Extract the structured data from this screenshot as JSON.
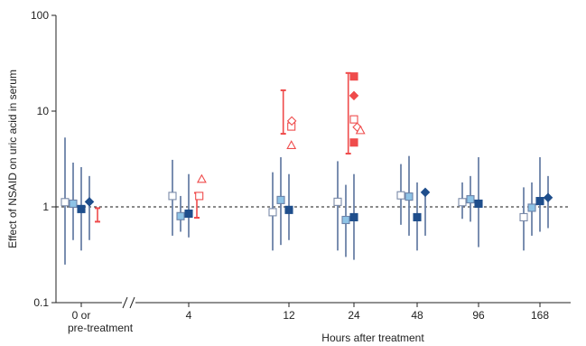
{
  "chart_data": {
    "type": "scatter",
    "scale_y": "log",
    "ylim": [
      0.1,
      100
    ],
    "ylabel": "Effect of NSAID on uric acid in serum",
    "xlabel": "Hours after treatment",
    "y_ticks": [
      "0.1",
      "1",
      "10",
      "100"
    ],
    "x_categories": [
      "0 or pre-treatment",
      "4",
      "12",
      "24",
      "48",
      "96",
      "168"
    ],
    "x_tick_lines": [
      [
        "0 or",
        "pre-treatment"
      ],
      [
        "4"
      ],
      [
        "12"
      ],
      [
        "24"
      ],
      [
        "48"
      ],
      [
        "96"
      ],
      [
        "168"
      ]
    ],
    "reference_line": 1,
    "axis_break_between": [
      "0 or pre-treatment",
      "4"
    ],
    "colors": {
      "light_open": "#ffffff",
      "light_blue": "#8ec3e6",
      "dark_blue": "#1f4e8c",
      "error_blue": "#6b82a8",
      "red": "#ef4b4b",
      "axis": "#222222"
    },
    "points": [
      {
        "category": "0 or pre-treatment",
        "offset": -2,
        "value": 1.12,
        "lower": 0.25,
        "upper": 5.3,
        "marker": "square-open",
        "color": "blue"
      },
      {
        "category": "0 or pre-treatment",
        "offset": -1,
        "value": 1.08,
        "lower": 0.45,
        "upper": 2.9,
        "marker": "square-light",
        "color": "blue"
      },
      {
        "category": "0 or pre-treatment",
        "offset": 0,
        "value": 0.95,
        "lower": 0.35,
        "upper": 2.6,
        "marker": "square-dark",
        "color": "blue"
      },
      {
        "category": "0 or pre-treatment",
        "offset": 1,
        "value": 1.13,
        "lower": 0.45,
        "upper": 2.1,
        "marker": "diamond-dark",
        "color": "blue"
      },
      {
        "category": "0 or pre-treatment",
        "offset": 2,
        "value": null,
        "lower": 0.7,
        "upper": 0.97,
        "marker": "none",
        "color": "red"
      },
      {
        "category": "4",
        "offset": -2,
        "value": 1.3,
        "lower": 0.5,
        "upper": 3.1,
        "marker": "square-open",
        "color": "blue"
      },
      {
        "category": "4",
        "offset": -1,
        "value": 0.8,
        "lower": 0.55,
        "upper": 1.3,
        "marker": "square-light",
        "color": "blue"
      },
      {
        "category": "4",
        "offset": 0,
        "value": 0.85,
        "lower": 0.48,
        "upper": 2.2,
        "marker": "square-dark",
        "color": "blue"
      },
      {
        "category": "4",
        "offset": 1,
        "value": null,
        "lower": 0.77,
        "upper": 1.4,
        "marker": "none",
        "color": "red"
      },
      {
        "category": "4",
        "offset": 1.3,
        "value": 1.3,
        "lower": null,
        "upper": null,
        "marker": "square-open",
        "color": "red"
      },
      {
        "category": "4",
        "offset": 1.6,
        "value": 1.95,
        "lower": null,
        "upper": null,
        "marker": "triangle-open",
        "color": "red"
      },
      {
        "category": "12",
        "offset": -2,
        "value": 0.88,
        "lower": 0.35,
        "upper": 2.3,
        "marker": "square-open",
        "color": "blue"
      },
      {
        "category": "12",
        "offset": -1,
        "value": 1.18,
        "lower": 0.4,
        "upper": 3.3,
        "marker": "square-light",
        "color": "blue"
      },
      {
        "category": "12",
        "offset": 0,
        "value": 0.93,
        "lower": 0.45,
        "upper": 2.2,
        "marker": "square-dark",
        "color": "blue"
      },
      {
        "category": "12",
        "offset": -0.7,
        "value": null,
        "lower": 5.8,
        "upper": 16.5,
        "marker": "none",
        "color": "red"
      },
      {
        "category": "12",
        "offset": 0.3,
        "value": 6.9,
        "lower": null,
        "upper": null,
        "marker": "square-open",
        "color": "red"
      },
      {
        "category": "12",
        "offset": 0.35,
        "value": 7.9,
        "lower": null,
        "upper": null,
        "marker": "diamond-open",
        "color": "red"
      },
      {
        "category": "12",
        "offset": 0.3,
        "value": 4.4,
        "lower": null,
        "upper": null,
        "marker": "triangle-open",
        "color": "red"
      },
      {
        "category": "24",
        "offset": -2,
        "value": 1.13,
        "lower": 0.35,
        "upper": 3.0,
        "marker": "square-open",
        "color": "blue"
      },
      {
        "category": "24",
        "offset": -1,
        "value": 0.73,
        "lower": 0.3,
        "upper": 1.7,
        "marker": "square-light",
        "color": "blue"
      },
      {
        "category": "24",
        "offset": 0,
        "value": 0.78,
        "lower": 0.28,
        "upper": 2.2,
        "marker": "square-dark",
        "color": "blue"
      },
      {
        "category": "24",
        "offset": -0.7,
        "value": null,
        "lower": 3.6,
        "upper": 25,
        "marker": "none",
        "color": "red"
      },
      {
        "category": "24",
        "offset": 0,
        "value": 23,
        "lower": null,
        "upper": null,
        "marker": "square-dark",
        "color": "red"
      },
      {
        "category": "24",
        "offset": 0,
        "value": 14.5,
        "lower": null,
        "upper": null,
        "marker": "diamond-dark",
        "color": "red"
      },
      {
        "category": "24",
        "offset": 0,
        "value": 8.2,
        "lower": null,
        "upper": null,
        "marker": "square-open",
        "color": "red"
      },
      {
        "category": "24",
        "offset": 0.4,
        "value": 6.8,
        "lower": null,
        "upper": null,
        "marker": "diamond-open",
        "color": "red"
      },
      {
        "category": "24",
        "offset": 0.8,
        "value": 6.3,
        "lower": null,
        "upper": null,
        "marker": "triangle-open",
        "color": "red"
      },
      {
        "category": "24",
        "offset": 0,
        "value": 4.7,
        "lower": null,
        "upper": null,
        "marker": "square-dark",
        "color": "red"
      },
      {
        "category": "48",
        "offset": -2,
        "value": 1.32,
        "lower": 0.65,
        "upper": 2.8,
        "marker": "square-open",
        "color": "blue"
      },
      {
        "category": "48",
        "offset": -1,
        "value": 1.28,
        "lower": 0.5,
        "upper": 3.4,
        "marker": "square-light",
        "color": "blue"
      },
      {
        "category": "48",
        "offset": 0,
        "value": 0.78,
        "lower": 0.35,
        "upper": 1.8,
        "marker": "square-dark",
        "color": "blue"
      },
      {
        "category": "48",
        "offset": 1,
        "value": 1.42,
        "lower": 0.5,
        "upper": null,
        "marker": "diamond-dark",
        "color": "blue"
      },
      {
        "category": "96",
        "offset": -2,
        "value": 1.12,
        "lower": 0.75,
        "upper": 1.8,
        "marker": "square-open",
        "color": "blue"
      },
      {
        "category": "96",
        "offset": -1,
        "value": 1.2,
        "lower": 0.7,
        "upper": 2.1,
        "marker": "square-light",
        "color": "blue"
      },
      {
        "category": "96",
        "offset": 0,
        "value": 1.08,
        "lower": 0.38,
        "upper": 3.3,
        "marker": "square-dark",
        "color": "blue"
      },
      {
        "category": "168",
        "offset": -2,
        "value": 0.78,
        "lower": 0.35,
        "upper": 1.6,
        "marker": "square-open",
        "color": "blue"
      },
      {
        "category": "168",
        "offset": -1,
        "value": 0.98,
        "lower": 0.5,
        "upper": 1.8,
        "marker": "square-light",
        "color": "blue"
      },
      {
        "category": "168",
        "offset": 0,
        "value": 1.15,
        "lower": 0.55,
        "upper": 3.3,
        "marker": "square-dark",
        "color": "blue"
      },
      {
        "category": "168",
        "offset": 1,
        "value": 1.25,
        "lower": 0.6,
        "upper": 2.1,
        "marker": "diamond-dark",
        "color": "blue"
      }
    ]
  }
}
